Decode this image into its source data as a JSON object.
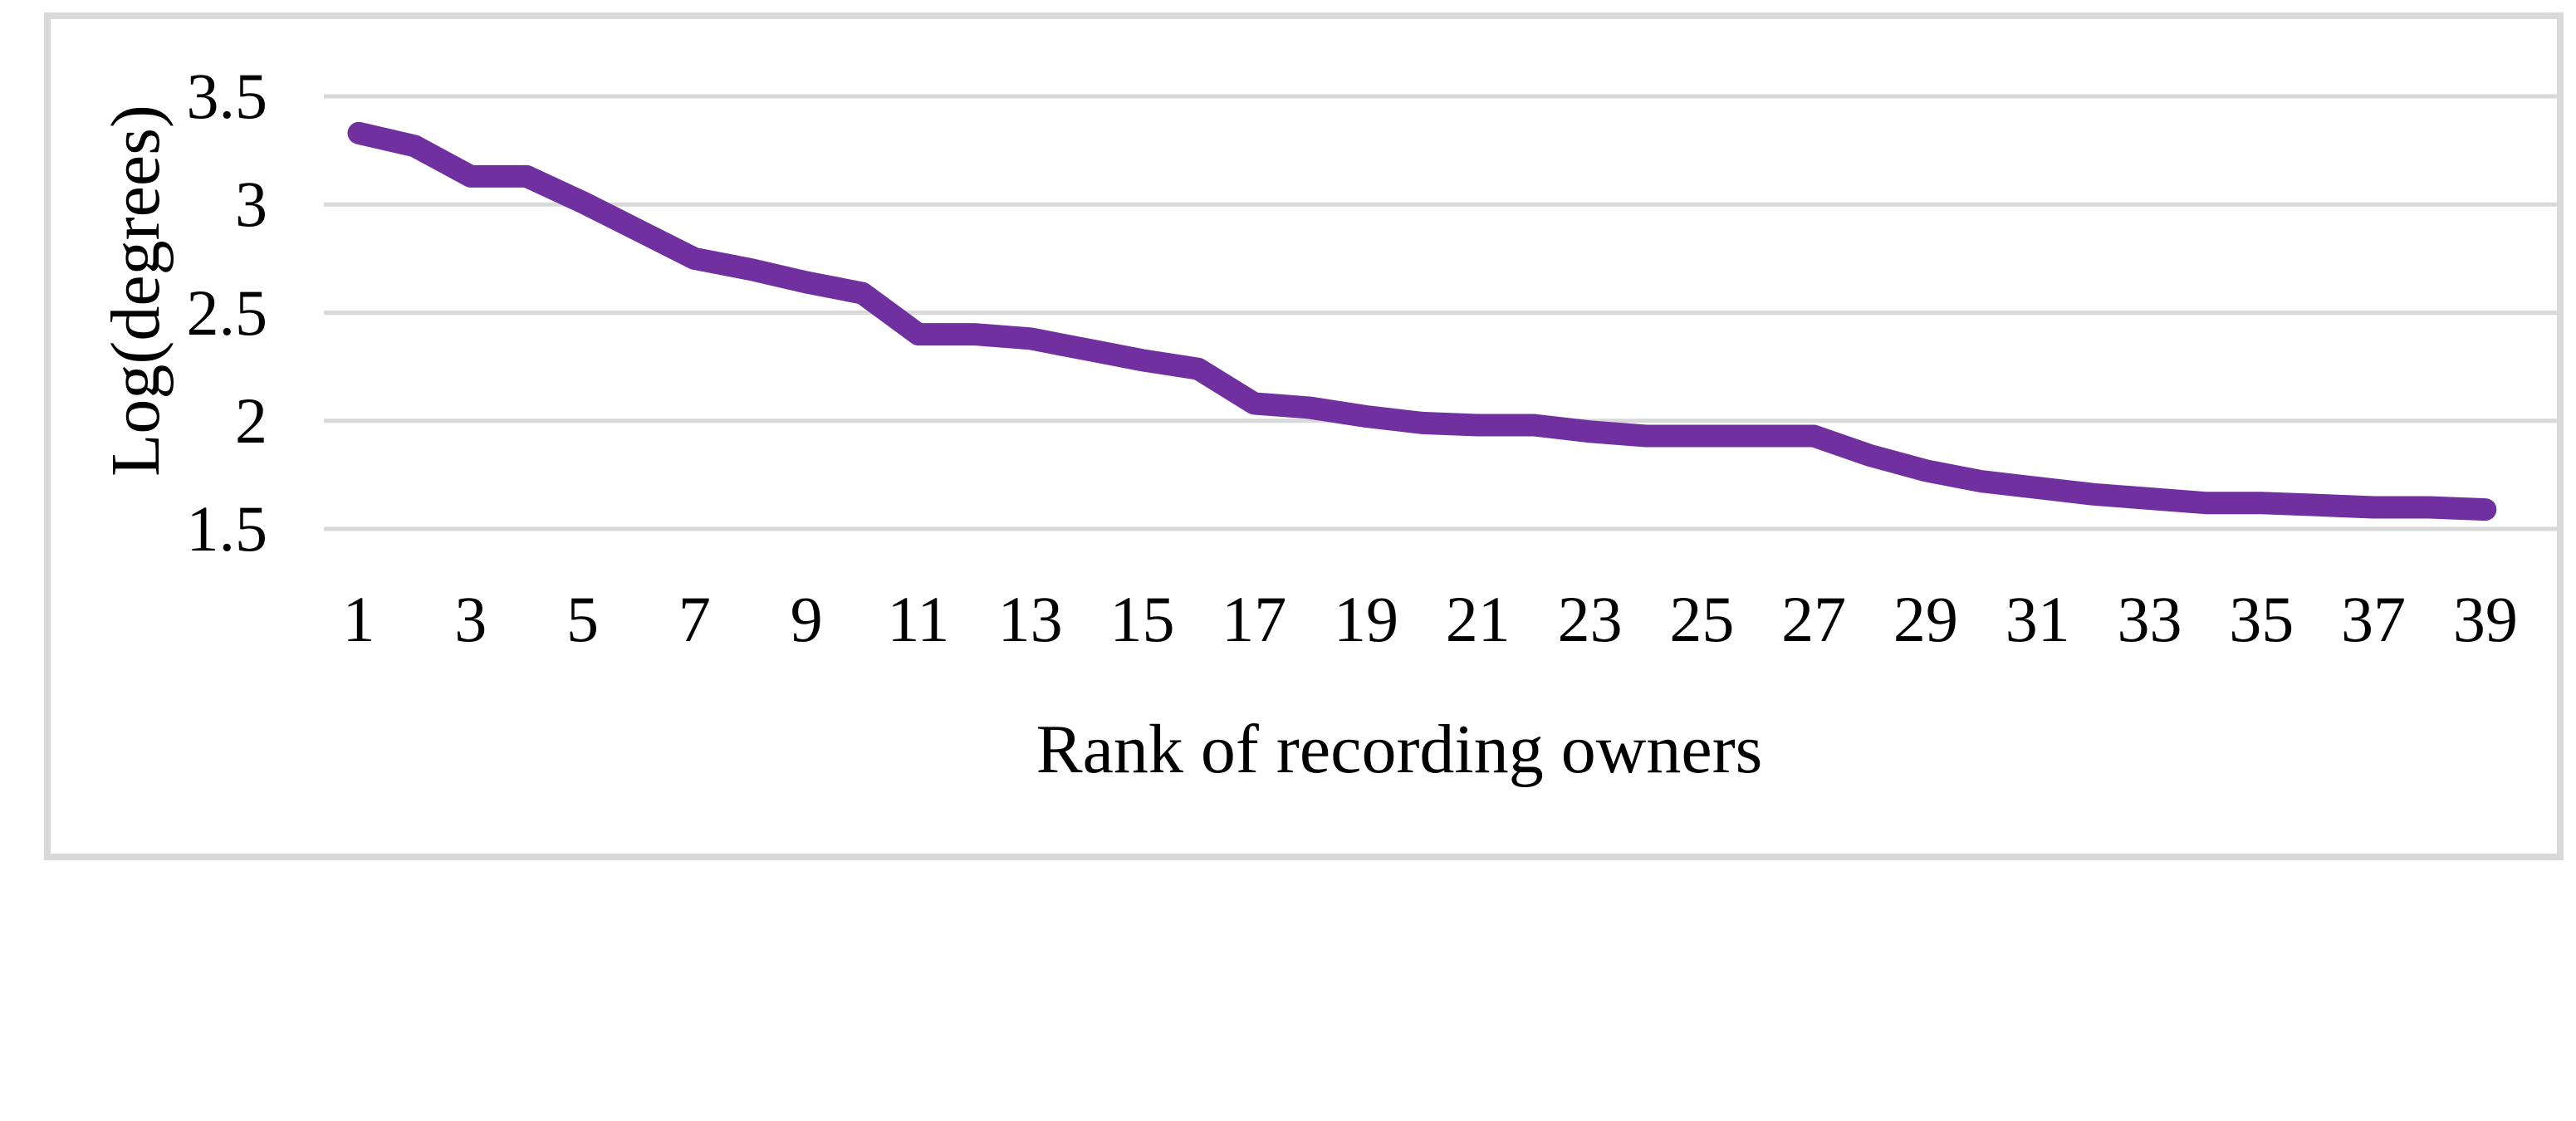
{
  "chart_data": {
    "type": "line",
    "title": "",
    "xlabel": "Rank of recording owners",
    "ylabel": "Log(degrees)",
    "x": [
      1,
      2,
      3,
      4,
      5,
      6,
      7,
      8,
      9,
      10,
      11,
      12,
      13,
      14,
      15,
      16,
      17,
      18,
      19,
      20,
      21,
      22,
      23,
      24,
      25,
      26,
      27,
      28,
      29,
      30,
      31,
      32,
      33,
      34,
      35,
      36,
      37,
      38,
      39
    ],
    "values": [
      3.33,
      3.27,
      3.13,
      3.13,
      3.01,
      2.88,
      2.75,
      2.7,
      2.64,
      2.59,
      2.4,
      2.4,
      2.38,
      2.33,
      2.28,
      2.24,
      2.08,
      2.06,
      2.02,
      1.99,
      1.98,
      1.98,
      1.95,
      1.93,
      1.93,
      1.93,
      1.93,
      1.84,
      1.77,
      1.72,
      1.69,
      1.66,
      1.64,
      1.62,
      1.62,
      1.61,
      1.6,
      1.6,
      1.59
    ],
    "x_ticks": [
      1,
      3,
      5,
      7,
      9,
      11,
      13,
      15,
      17,
      19,
      21,
      23,
      25,
      27,
      29,
      31,
      33,
      35,
      37,
      39
    ],
    "x_tick_labels": [
      "1",
      "3",
      "5",
      "7",
      "9",
      "11",
      "13",
      "15",
      "17",
      "19",
      "21",
      "23",
      "25",
      "27",
      "29",
      "31",
      "33",
      "35",
      "37",
      "39"
    ],
    "y_ticks": [
      3.5,
      3,
      2.5,
      2,
      1.5
    ],
    "y_tick_labels": [
      "3.5",
      "3",
      "2.5",
      "2",
      "1.5"
    ],
    "ylim": [
      1.5,
      3.5
    ],
    "grid": "horizontal",
    "legend": "none",
    "line_color": "#7030A0",
    "gridline_color": "#D9D9D9",
    "frame_color": "#D9D9D9",
    "background_color": "#FFFFFF",
    "text_color": "#000000"
  }
}
